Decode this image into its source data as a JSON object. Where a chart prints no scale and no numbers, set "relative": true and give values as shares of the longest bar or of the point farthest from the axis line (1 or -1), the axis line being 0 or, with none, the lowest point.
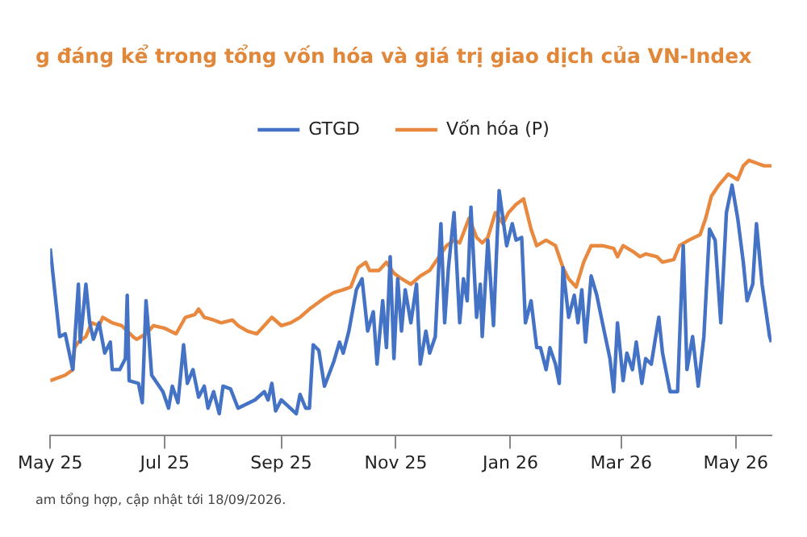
{
  "chart_data": {
    "type": "line",
    "title": "g đáng kể trong tổng vốn hóa và giá trị giao dịch của VN-Index",
    "relative": true,
    "legend": "top",
    "grid": false,
    "marker": "none",
    "line_style": "solid",
    "xlim": [
      "2025-05-01",
      "2026-05-20"
    ],
    "xticks": [
      {
        "value": "2025-05-01",
        "label": "May 25"
      },
      {
        "value": "2025-07-01",
        "label": "Jul 25"
      },
      {
        "value": "2025-09-01",
        "label": "Sep 25"
      },
      {
        "value": "2025-11-01",
        "label": "Nov 25"
      },
      {
        "value": "2026-01-01",
        "label": "Jan 26"
      },
      {
        "value": "2026-03-01",
        "label": "Mar 26"
      },
      {
        "value": "2026-05-01",
        "label": "May 26"
      }
    ],
    "annotations": [
      "am tổng hợp, cập nhật tới 18/09/2026."
    ],
    "series": [
      {
        "name": "GTGD",
        "color": "#4472c4",
        "x": [
          "2025-05-01",
          "2025-05-06",
          "2025-05-09",
          "2025-05-13",
          "2025-05-14",
          "2025-05-16",
          "2025-05-17",
          "2025-05-20",
          "2025-05-22",
          "2025-05-24",
          "2025-05-27",
          "2025-05-30",
          "2025-06-02",
          "2025-06-03",
          "2025-06-07",
          "2025-06-10",
          "2025-06-11",
          "2025-06-12",
          "2025-06-17",
          "2025-06-19",
          "2025-06-21",
          "2025-06-22",
          "2025-06-24",
          "2025-06-30",
          "2025-07-03",
          "2025-07-05",
          "2025-07-08",
          "2025-07-11",
          "2025-07-13",
          "2025-07-16",
          "2025-07-19",
          "2025-07-22",
          "2025-07-24",
          "2025-07-27",
          "2025-07-30",
          "2025-08-01",
          "2025-08-05",
          "2025-08-09",
          "2025-08-18",
          "2025-08-23",
          "2025-08-25",
          "2025-08-27",
          "2025-08-29",
          "2025-09-01",
          "2025-09-09",
          "2025-09-11",
          "2025-09-14",
          "2025-09-16",
          "2025-09-18",
          "2025-09-21",
          "2025-09-24",
          "2025-09-29",
          "2025-10-02",
          "2025-10-04",
          "2025-10-07",
          "2025-10-11",
          "2025-10-14",
          "2025-10-17",
          "2025-10-20",
          "2025-10-22",
          "2025-10-25",
          "2025-10-27",
          "2025-10-29",
          "2025-10-31",
          "2025-11-02",
          "2025-11-04",
          "2025-11-06",
          "2025-11-09",
          "2025-11-12",
          "2025-11-14",
          "2025-11-17",
          "2025-11-19",
          "2025-11-22",
          "2025-11-25",
          "2025-11-27",
          "2025-11-29",
          "2025-12-02",
          "2025-12-05",
          "2025-12-07",
          "2025-12-09",
          "2025-12-11",
          "2025-12-14",
          "2025-12-16",
          "2025-12-17",
          "2025-12-20",
          "2025-12-23",
          "2025-12-26",
          "2025-12-30",
          "2026-01-02",
          "2026-01-04",
          "2026-01-07",
          "2026-01-09",
          "2026-01-12",
          "2026-01-15",
          "2026-01-17",
          "2026-01-20",
          "2026-01-22",
          "2026-01-25",
          "2026-01-27",
          "2026-01-29",
          "2026-02-01",
          "2026-02-04",
          "2026-02-06",
          "2026-02-08",
          "2026-02-10",
          "2026-02-13",
          "2026-02-16",
          "2026-02-19",
          "2026-02-23",
          "2026-02-25",
          "2026-02-27",
          "2026-03-02",
          "2026-03-04",
          "2026-03-07",
          "2026-03-09",
          "2026-03-12",
          "2026-03-14",
          "2026-03-17",
          "2026-03-21",
          "2026-03-23",
          "2026-03-27",
          "2026-03-31",
          "2026-04-03",
          "2026-04-05",
          "2026-04-08",
          "2026-04-11",
          "2026-04-14",
          "2026-04-17",
          "2026-04-20",
          "2026-04-23",
          "2026-04-26",
          "2026-04-29",
          "2026-05-02",
          "2026-05-05",
          "2026-05-07",
          "2026-05-10",
          "2026-05-12",
          "2026-05-15",
          "2026-05-19",
          "2026-05-20"
        ],
        "values": [
          0.68,
          0.36,
          0.37,
          0.24,
          0.34,
          0.55,
          0.34,
          0.55,
          0.41,
          0.35,
          0.41,
          0.3,
          0.34,
          0.24,
          0.24,
          0.28,
          0.51,
          0.2,
          0.19,
          0.12,
          0.49,
          0.41,
          0.22,
          0.16,
          0.1,
          0.18,
          0.12,
          0.33,
          0.19,
          0.24,
          0.14,
          0.18,
          0.1,
          0.16,
          0.08,
          0.18,
          0.17,
          0.1,
          0.13,
          0.16,
          0.13,
          0.19,
          0.09,
          0.13,
          0.08,
          0.15,
          0.1,
          0.1,
          0.33,
          0.31,
          0.18,
          0.27,
          0.34,
          0.3,
          0.38,
          0.53,
          0.57,
          0.38,
          0.45,
          0.26,
          0.49,
          0.32,
          0.65,
          0.28,
          0.57,
          0.38,
          0.53,
          0.41,
          0.55,
          0.26,
          0.38,
          0.3,
          0.36,
          0.77,
          0.41,
          0.61,
          0.81,
          0.41,
          0.57,
          0.49,
          0.83,
          0.43,
          0.55,
          0.36,
          0.71,
          0.4,
          0.89,
          0.69,
          0.77,
          0.71,
          0.72,
          0.41,
          0.49,
          0.32,
          0.32,
          0.24,
          0.32,
          0.26,
          0.19,
          0.61,
          0.43,
          0.51,
          0.41,
          0.53,
          0.34,
          0.58,
          0.51,
          0.41,
          0.28,
          0.16,
          0.41,
          0.2,
          0.3,
          0.24,
          0.34,
          0.19,
          0.28,
          0.26,
          0.43,
          0.3,
          0.16,
          0.16,
          0.69,
          0.24,
          0.36,
          0.18,
          0.36,
          0.75,
          0.71,
          0.41,
          0.81,
          0.91,
          0.79,
          0.63,
          0.49,
          0.55,
          0.77,
          0.55,
          0.36,
          0.34
        ]
      },
      {
        "name": "Vốn hóa (P)",
        "color": "#e8893f",
        "x": [
          "2025-05-01",
          "2025-05-09",
          "2025-05-13",
          "2025-05-14",
          "2025-05-16",
          "2025-05-20",
          "2025-05-23",
          "2025-05-27",
          "2025-05-29",
          "2025-06-03",
          "2025-06-08",
          "2025-06-14",
          "2025-06-16",
          "2025-06-21",
          "2025-06-25",
          "2025-07-01",
          "2025-07-07",
          "2025-07-12",
          "2025-07-17",
          "2025-07-19",
          "2025-07-22",
          "2025-07-27",
          "2025-07-31",
          "2025-08-06",
          "2025-08-09",
          "2025-08-14",
          "2025-08-19",
          "2025-08-23",
          "2025-08-27",
          "2025-09-01",
          "2025-09-06",
          "2025-09-11",
          "2025-09-16",
          "2025-09-20",
          "2025-09-24",
          "2025-09-29",
          "2025-10-04",
          "2025-10-08",
          "2025-10-12",
          "2025-10-16",
          "2025-10-18",
          "2025-10-23",
          "2025-10-27",
          "2025-10-31",
          "2025-11-04",
          "2025-11-09",
          "2025-11-14",
          "2025-11-19",
          "2025-11-24",
          "2025-11-28",
          "2025-12-02",
          "2025-12-05",
          "2025-12-10",
          "2025-12-14",
          "2025-12-17",
          "2025-12-20",
          "2025-12-24",
          "2025-12-28",
          "2025-12-31",
          "2026-01-04",
          "2026-01-08",
          "2026-01-12",
          "2026-01-15",
          "2026-01-20",
          "2026-01-25",
          "2026-01-29",
          "2026-02-01",
          "2026-02-05",
          "2026-02-09",
          "2026-02-13",
          "2026-02-19",
          "2026-02-25",
          "2026-02-27",
          "2026-03-02",
          "2026-03-07",
          "2026-03-11",
          "2026-03-14",
          "2026-03-20",
          "2026-03-23",
          "2026-03-29",
          "2026-04-01",
          "2026-04-06",
          "2026-04-12",
          "2026-04-15",
          "2026-04-18",
          "2026-04-22",
          "2026-04-27",
          "2026-05-02",
          "2026-05-05",
          "2026-05-08",
          "2026-05-12",
          "2026-05-16",
          "2026-05-20"
        ],
        "values": [
          0.2,
          0.22,
          0.24,
          0.32,
          0.34,
          0.36,
          0.41,
          0.4,
          0.43,
          0.41,
          0.4,
          0.36,
          0.35,
          0.37,
          0.4,
          0.39,
          0.37,
          0.43,
          0.44,
          0.46,
          0.43,
          0.42,
          0.41,
          0.42,
          0.4,
          0.38,
          0.37,
          0.4,
          0.43,
          0.4,
          0.41,
          0.43,
          0.46,
          0.48,
          0.5,
          0.52,
          0.53,
          0.54,
          0.61,
          0.63,
          0.6,
          0.6,
          0.63,
          0.59,
          0.57,
          0.55,
          0.58,
          0.6,
          0.65,
          0.69,
          0.71,
          0.7,
          0.79,
          0.72,
          0.7,
          0.72,
          0.81,
          0.77,
          0.81,
          0.84,
          0.86,
          0.75,
          0.69,
          0.71,
          0.69,
          0.61,
          0.57,
          0.54,
          0.63,
          0.69,
          0.69,
          0.68,
          0.65,
          0.69,
          0.67,
          0.65,
          0.66,
          0.65,
          0.63,
          0.64,
          0.69,
          0.71,
          0.73,
          0.79,
          0.87,
          0.91,
          0.95,
          0.93,
          0.98,
          1.0,
          0.99,
          0.98,
          0.98
        ]
      }
    ]
  }
}
